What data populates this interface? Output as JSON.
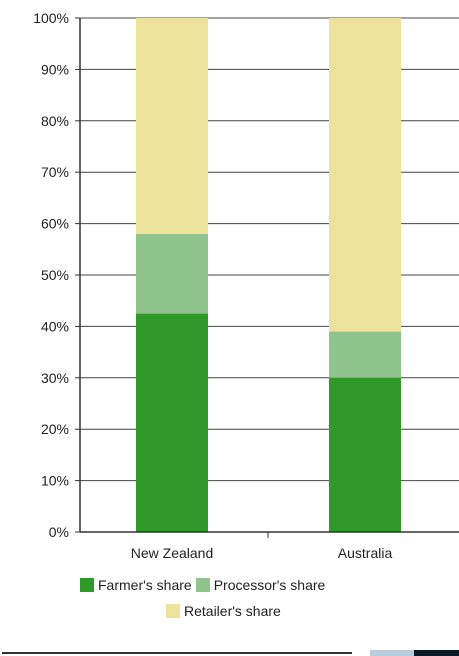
{
  "chart_data": {
    "type": "bar",
    "stacked": true,
    "categories": [
      "New Zealand",
      "Australia"
    ],
    "series": [
      {
        "name": "Farmer's share",
        "values": [
          42.5,
          30
        ],
        "color": "#2f9a2a"
      },
      {
        "name": "Processor's share",
        "values": [
          15.5,
          9
        ],
        "color": "#8fc48d"
      },
      {
        "name": "Retailer's share",
        "values": [
          42,
          61
        ],
        "color": "#ece29c"
      }
    ],
    "ylim": [
      0,
      100
    ],
    "yticks": [
      0,
      10,
      20,
      30,
      40,
      50,
      60,
      70,
      80,
      90,
      100
    ],
    "ytick_labels": [
      "0%",
      "10%",
      "20%",
      "30%",
      "40%",
      "50%",
      "60%",
      "70%",
      "80%",
      "90%",
      "100%"
    ],
    "grid": true,
    "legend_position": "bottom",
    "title": "",
    "xlabel": "",
    "ylabel": ""
  },
  "colors": {
    "grid": "#444444",
    "axis": "#333333",
    "bottom_swatch_light": "#b7cde0",
    "bottom_swatch_dark": "#0d1a24"
  }
}
